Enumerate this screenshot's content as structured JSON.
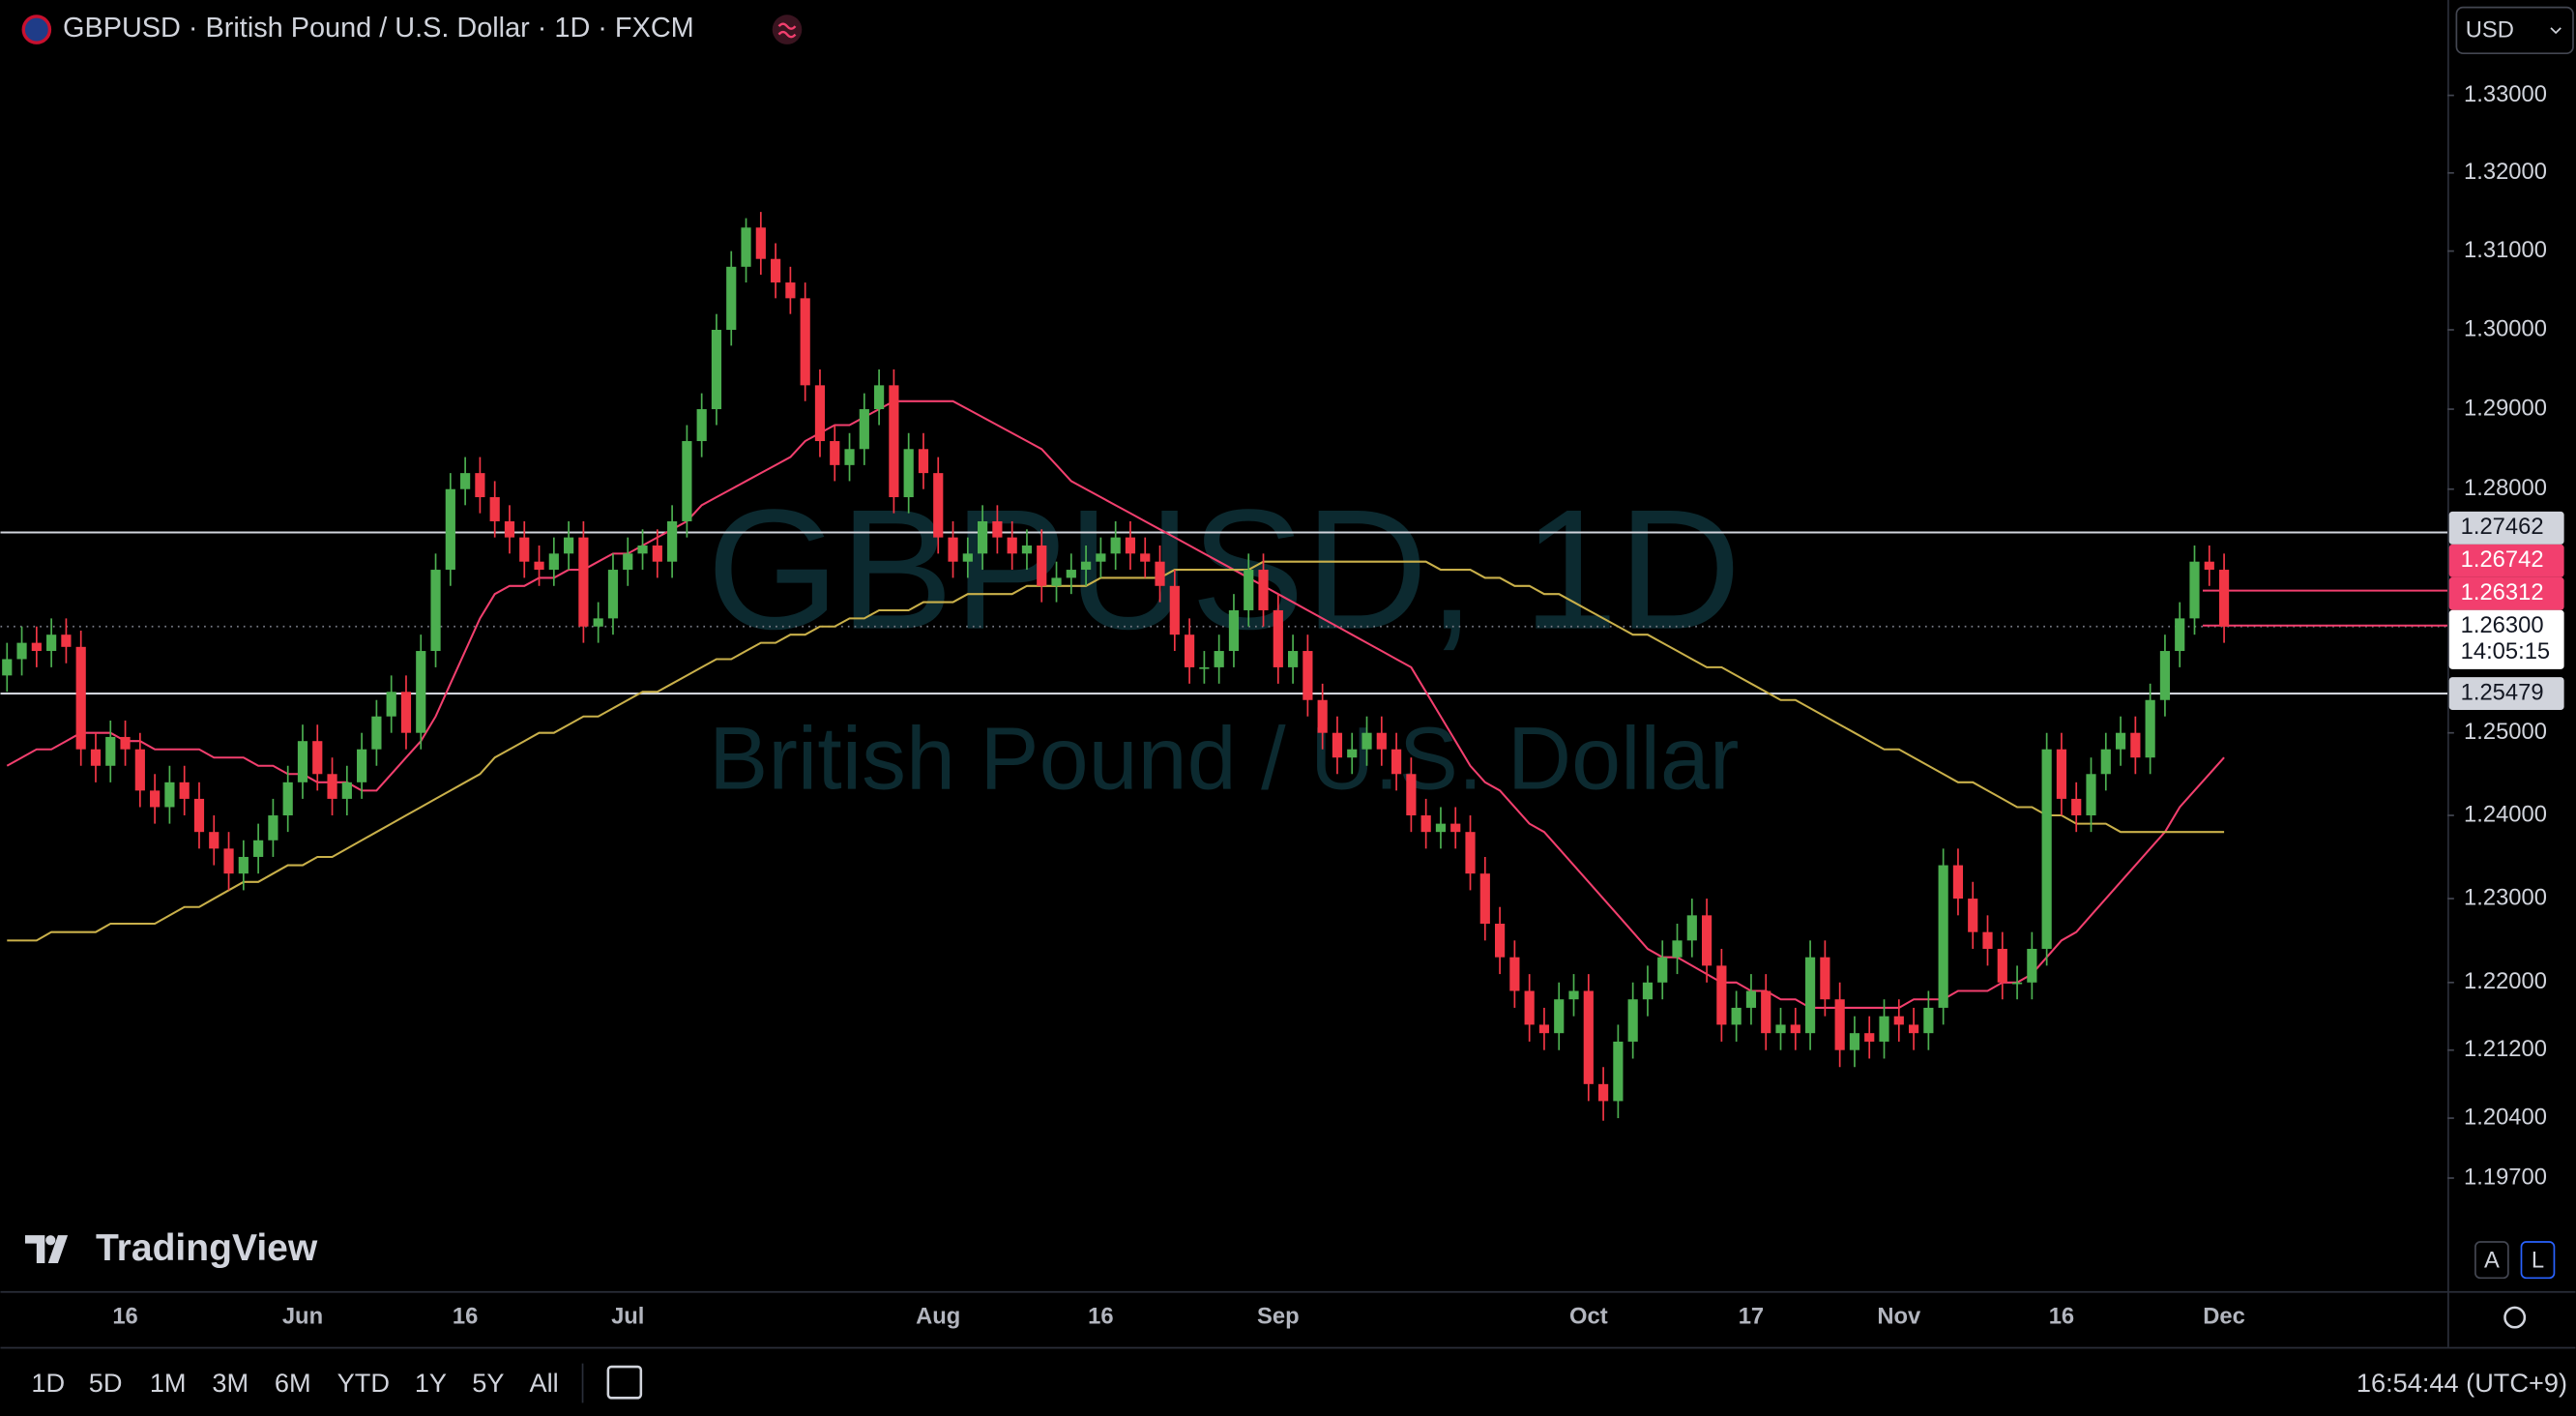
{
  "header": {
    "symbol_title": "GBPUSD · British Pound / U.S. Dollar · 1D · FXCM",
    "currency": "USD"
  },
  "chart_data": {
    "type": "candlestick",
    "watermark_title": "GBPUSD, 1D",
    "watermark_subtitle": "British Pound / U.S. Dollar",
    "log_scale": true,
    "up_color": "#4caf50",
    "down_color": "#f23645",
    "ylim": [
      1.1839,
      1.3424
    ],
    "yticks": [
      {
        "value": 1.33,
        "label": "1.33000"
      },
      {
        "value": 1.32,
        "label": "1.32000"
      },
      {
        "value": 1.31,
        "label": "1.31000"
      },
      {
        "value": 1.3,
        "label": "1.30000"
      },
      {
        "value": 1.29,
        "label": "1.29000"
      },
      {
        "value": 1.28,
        "label": "1.28000"
      },
      {
        "value": 1.25,
        "label": "1.25000"
      },
      {
        "value": 1.24,
        "label": "1.24000"
      },
      {
        "value": 1.23,
        "label": "1.23000"
      },
      {
        "value": 1.22,
        "label": "1.22000"
      },
      {
        "value": 1.212,
        "label": "1.21200"
      },
      {
        "value": 1.204,
        "label": "1.20400"
      },
      {
        "value": 1.197,
        "label": "1.19700"
      }
    ],
    "categories": [
      null,
      null,
      null,
      null,
      null,
      null,
      null,
      null,
      "16",
      null,
      null,
      null,
      null,
      null,
      null,
      null,
      null,
      null,
      null,
      null,
      "Jun",
      null,
      null,
      null,
      null,
      null,
      null,
      null,
      null,
      null,
      null,
      "16",
      null,
      null,
      null,
      null,
      null,
      null,
      null,
      null,
      null,
      null,
      "Jul",
      null,
      null,
      null,
      null,
      null,
      null,
      null,
      null,
      null,
      null,
      null,
      null,
      null,
      null,
      null,
      null,
      null,
      null,
      null,
      null,
      "Aug",
      null,
      null,
      null,
      null,
      null,
      null,
      null,
      null,
      null,
      null,
      "16",
      null,
      null,
      null,
      null,
      null,
      null,
      null,
      null,
      null,
      null,
      null,
      "Sep",
      null,
      null,
      null,
      null,
      null,
      null,
      null,
      null,
      null,
      null,
      null,
      null,
      null,
      null,
      null,
      null,
      null,
      null,
      null,
      null,
      "Oct",
      null,
      null,
      null,
      null,
      null,
      null,
      null,
      null,
      null,
      null,
      "17",
      null,
      null,
      null,
      null,
      null,
      null,
      null,
      null,
      null,
      "Nov",
      null,
      null,
      null,
      null,
      null,
      null,
      null,
      null,
      null,
      null,
      "16",
      null,
      null,
      null,
      null,
      null,
      null,
      null,
      null,
      null,
      null,
      "Dec"
    ],
    "open": [
      1.257,
      1.259,
      1.261,
      1.26,
      1.262,
      1.2605,
      1.248,
      1.246,
      1.2495,
      1.248,
      1.243,
      1.241,
      1.244,
      1.242,
      1.238,
      1.236,
      1.233,
      1.235,
      1.237,
      1.24,
      1.244,
      1.249,
      1.245,
      1.242,
      1.244,
      1.248,
      1.252,
      1.255,
      1.25,
      1.26,
      1.27,
      1.28,
      1.282,
      1.279,
      1.276,
      1.274,
      1.271,
      1.27,
      1.272,
      1.274,
      1.263,
      1.264,
      1.27,
      1.272,
      1.273,
      1.271,
      1.276,
      1.286,
      1.29,
      1.3,
      1.308,
      1.313,
      1.309,
      1.306,
      1.304,
      1.293,
      1.286,
      1.283,
      1.285,
      1.29,
      1.293,
      1.279,
      1.285,
      1.282,
      1.274,
      1.271,
      1.272,
      1.276,
      1.274,
      1.272,
      1.273,
      1.268,
      1.269,
      1.27,
      1.271,
      1.272,
      1.274,
      1.272,
      1.271,
      1.268,
      1.262,
      1.258,
      1.258,
      1.26,
      1.265,
      1.27,
      1.265,
      1.258,
      1.26,
      1.254,
      1.25,
      1.247,
      1.248,
      1.25,
      1.248,
      1.245,
      1.24,
      1.238,
      1.239,
      1.238,
      1.233,
      1.227,
      1.223,
      1.219,
      1.215,
      1.214,
      1.218,
      1.219,
      1.208,
      1.206,
      1.213,
      1.218,
      1.22,
      1.223,
      1.225,
      1.228,
      1.222,
      1.215,
      1.217,
      1.219,
      1.214,
      1.215,
      1.214,
      1.223,
      1.218,
      1.212,
      1.214,
      1.213,
      1.216,
      1.215,
      1.214,
      1.217,
      1.234,
      1.23,
      1.226,
      1.224,
      1.22,
      1.22,
      1.224,
      1.248,
      1.242,
      1.24,
      1.245,
      1.248,
      1.25,
      1.247,
      1.254,
      1.26,
      1.264,
      1.271,
      1.27
    ],
    "high": [
      1.261,
      1.263,
      1.263,
      1.264,
      1.264,
      1.2625,
      1.25,
      1.2515,
      1.2515,
      1.25,
      1.245,
      1.246,
      1.246,
      1.244,
      1.24,
      1.238,
      1.237,
      1.239,
      1.242,
      1.246,
      1.251,
      1.251,
      1.247,
      1.246,
      1.25,
      1.254,
      1.257,
      1.257,
      1.262,
      1.272,
      1.282,
      1.284,
      1.284,
      1.281,
      1.278,
      1.276,
      1.273,
      1.274,
      1.276,
      1.276,
      1.266,
      1.272,
      1.274,
      1.275,
      1.275,
      1.278,
      1.288,
      1.292,
      1.302,
      1.31,
      1.3142,
      1.315,
      1.311,
      1.308,
      1.306,
      1.295,
      1.288,
      1.287,
      1.292,
      1.295,
      1.295,
      1.287,
      1.287,
      1.284,
      1.276,
      1.274,
      1.278,
      1.278,
      1.276,
      1.275,
      1.275,
      1.271,
      1.272,
      1.273,
      1.274,
      1.276,
      1.276,
      1.274,
      1.273,
      1.27,
      1.264,
      1.26,
      1.262,
      1.267,
      1.272,
      1.272,
      1.267,
      1.262,
      1.262,
      1.256,
      1.252,
      1.25,
      1.252,
      1.252,
      1.25,
      1.247,
      1.242,
      1.241,
      1.241,
      1.24,
      1.235,
      1.229,
      1.225,
      1.221,
      1.217,
      1.22,
      1.221,
      1.221,
      1.21,
      1.215,
      1.22,
      1.222,
      1.225,
      1.227,
      1.23,
      1.23,
      1.224,
      1.219,
      1.221,
      1.221,
      1.217,
      1.217,
      1.225,
      1.225,
      1.22,
      1.216,
      1.216,
      1.218,
      1.218,
      1.217,
      1.219,
      1.236,
      1.236,
      1.232,
      1.228,
      1.226,
      1.222,
      1.226,
      1.25,
      1.25,
      1.244,
      1.247,
      1.25,
      1.252,
      1.252,
      1.256,
      1.262,
      1.266,
      1.273,
      1.273,
      1.272
    ],
    "low": [
      1.255,
      1.257,
      1.258,
      1.258,
      1.2585,
      1.246,
      1.244,
      1.244,
      1.246,
      1.241,
      1.239,
      1.239,
      1.24,
      1.236,
      1.234,
      1.231,
      1.231,
      1.233,
      1.235,
      1.238,
      1.242,
      1.243,
      1.24,
      1.24,
      1.242,
      1.246,
      1.25,
      1.248,
      1.248,
      1.258,
      1.268,
      1.278,
      1.277,
      1.274,
      1.272,
      1.269,
      1.268,
      1.268,
      1.27,
      1.261,
      1.261,
      1.262,
      1.268,
      1.27,
      1.269,
      1.269,
      1.274,
      1.284,
      1.288,
      1.298,
      1.306,
      1.307,
      1.304,
      1.302,
      1.291,
      1.284,
      1.281,
      1.281,
      1.283,
      1.288,
      1.277,
      1.277,
      1.28,
      1.272,
      1.269,
      1.269,
      1.27,
      1.272,
      1.27,
      1.27,
      1.266,
      1.266,
      1.267,
      1.268,
      1.269,
      1.27,
      1.27,
      1.269,
      1.266,
      1.26,
      1.256,
      1.256,
      1.256,
      1.258,
      1.263,
      1.263,
      1.256,
      1.256,
      1.252,
      1.248,
      1.245,
      1.245,
      1.246,
      1.246,
      1.243,
      1.238,
      1.236,
      1.236,
      1.236,
      1.231,
      1.225,
      1.221,
      1.217,
      1.213,
      1.212,
      1.212,
      1.216,
      1.206,
      1.2037,
      1.204,
      1.211,
      1.216,
      1.218,
      1.221,
      1.223,
      1.22,
      1.213,
      1.213,
      1.215,
      1.212,
      1.212,
      1.212,
      1.212,
      1.216,
      1.21,
      1.21,
      1.211,
      1.211,
      1.213,
      1.212,
      1.212,
      1.215,
      1.228,
      1.224,
      1.222,
      1.218,
      1.218,
      1.218,
      1.222,
      1.24,
      1.238,
      1.238,
      1.243,
      1.246,
      1.245,
      1.245,
      1.252,
      1.258,
      1.262,
      1.268,
      1.261
    ],
    "close": [
      1.259,
      1.261,
      1.26,
      1.262,
      1.2605,
      1.248,
      1.246,
      1.2495,
      1.248,
      1.243,
      1.241,
      1.244,
      1.242,
      1.238,
      1.236,
      1.233,
      1.235,
      1.237,
      1.24,
      1.244,
      1.249,
      1.245,
      1.242,
      1.244,
      1.248,
      1.252,
      1.255,
      1.25,
      1.26,
      1.27,
      1.28,
      1.282,
      1.279,
      1.276,
      1.274,
      1.271,
      1.27,
      1.272,
      1.274,
      1.263,
      1.264,
      1.27,
      1.272,
      1.273,
      1.271,
      1.276,
      1.286,
      1.29,
      1.3,
      1.308,
      1.313,
      1.309,
      1.306,
      1.304,
      1.293,
      1.286,
      1.283,
      1.285,
      1.29,
      1.293,
      1.279,
      1.285,
      1.282,
      1.274,
      1.271,
      1.272,
      1.276,
      1.274,
      1.272,
      1.273,
      1.268,
      1.269,
      1.27,
      1.271,
      1.272,
      1.274,
      1.272,
      1.271,
      1.268,
      1.262,
      1.258,
      1.258,
      1.26,
      1.265,
      1.27,
      1.265,
      1.258,
      1.26,
      1.254,
      1.25,
      1.247,
      1.248,
      1.25,
      1.248,
      1.245,
      1.24,
      1.238,
      1.239,
      1.238,
      1.233,
      1.227,
      1.223,
      1.219,
      1.215,
      1.214,
      1.218,
      1.219,
      1.208,
      1.206,
      1.213,
      1.218,
      1.22,
      1.223,
      1.225,
      1.228,
      1.222,
      1.215,
      1.217,
      1.219,
      1.214,
      1.215,
      1.214,
      1.223,
      1.218,
      1.212,
      1.214,
      1.213,
      1.216,
      1.215,
      1.214,
      1.217,
      1.234,
      1.23,
      1.226,
      1.224,
      1.22,
      1.22,
      1.224,
      1.248,
      1.242,
      1.24,
      1.245,
      1.248,
      1.25,
      1.247,
      1.254,
      1.26,
      1.264,
      1.271,
      1.27,
      1.263
    ],
    "moving_averages": [
      {
        "color": "#f23f6e",
        "values": [
          1.246,
          1.247,
          1.248,
          1.248,
          1.249,
          1.25,
          1.25,
          1.25,
          1.249,
          1.249,
          1.248,
          1.248,
          1.248,
          1.248,
          1.247,
          1.247,
          1.247,
          1.246,
          1.246,
          1.245,
          1.245,
          1.244,
          1.244,
          1.244,
          1.243,
          1.243,
          1.245,
          1.247,
          1.249,
          1.252,
          1.256,
          1.26,
          1.264,
          1.267,
          1.268,
          1.268,
          1.269,
          1.269,
          1.27,
          1.27,
          1.271,
          1.272,
          1.272,
          1.273,
          1.274,
          1.275,
          1.276,
          1.278,
          1.279,
          1.28,
          1.281,
          1.282,
          1.283,
          1.284,
          1.286,
          1.287,
          1.288,
          1.288,
          1.289,
          1.29,
          1.291,
          1.291,
          1.291,
          1.291,
          1.291,
          1.29,
          1.289,
          1.288,
          1.287,
          1.286,
          1.285,
          1.283,
          1.281,
          1.28,
          1.279,
          1.278,
          1.277,
          1.276,
          1.275,
          1.274,
          1.273,
          1.272,
          1.271,
          1.27,
          1.269,
          1.268,
          1.267,
          1.266,
          1.265,
          1.264,
          1.263,
          1.262,
          1.261,
          1.26,
          1.259,
          1.258,
          1.255,
          1.252,
          1.249,
          1.246,
          1.244,
          1.243,
          1.241,
          1.239,
          1.238,
          1.236,
          1.234,
          1.232,
          1.23,
          1.228,
          1.226,
          1.224,
          1.223,
          1.223,
          1.222,
          1.221,
          1.22,
          1.22,
          1.219,
          1.219,
          1.218,
          1.218,
          1.217,
          1.217,
          1.217,
          1.217,
          1.217,
          1.217,
          1.217,
          1.218,
          1.218,
          1.218,
          1.219,
          1.219,
          1.219,
          1.22,
          1.22,
          1.221,
          1.223,
          1.225,
          1.226,
          1.228,
          1.23,
          1.232,
          1.234,
          1.236,
          1.238,
          1.241,
          1.243,
          1.245,
          1.247
        ]
      },
      {
        "color": "#c9b04a",
        "values": [
          1.225,
          1.225,
          1.225,
          1.226,
          1.226,
          1.226,
          1.226,
          1.227,
          1.227,
          1.227,
          1.227,
          1.228,
          1.229,
          1.229,
          1.23,
          1.231,
          1.232,
          1.232,
          1.233,
          1.234,
          1.234,
          1.235,
          1.235,
          1.236,
          1.237,
          1.238,
          1.239,
          1.24,
          1.241,
          1.242,
          1.243,
          1.244,
          1.245,
          1.247,
          1.248,
          1.249,
          1.25,
          1.25,
          1.251,
          1.252,
          1.252,
          1.253,
          1.254,
          1.255,
          1.255,
          1.256,
          1.257,
          1.258,
          1.259,
          1.259,
          1.26,
          1.261,
          1.261,
          1.262,
          1.262,
          1.263,
          1.263,
          1.264,
          1.264,
          1.265,
          1.265,
          1.265,
          1.266,
          1.266,
          1.266,
          1.267,
          1.267,
          1.267,
          1.267,
          1.268,
          1.268,
          1.268,
          1.268,
          1.268,
          1.269,
          1.269,
          1.269,
          1.269,
          1.269,
          1.27,
          1.27,
          1.27,
          1.27,
          1.27,
          1.27,
          1.271,
          1.271,
          1.271,
          1.271,
          1.271,
          1.271,
          1.271,
          1.271,
          1.271,
          1.271,
          1.271,
          1.271,
          1.27,
          1.27,
          1.27,
          1.269,
          1.269,
          1.268,
          1.268,
          1.267,
          1.267,
          1.266,
          1.265,
          1.264,
          1.263,
          1.262,
          1.262,
          1.261,
          1.26,
          1.259,
          1.258,
          1.258,
          1.257,
          1.256,
          1.255,
          1.254,
          1.254,
          1.253,
          1.252,
          1.251,
          1.25,
          1.249,
          1.248,
          1.248,
          1.247,
          1.246,
          1.245,
          1.244,
          1.244,
          1.243,
          1.242,
          1.241,
          1.241,
          1.24,
          1.24,
          1.239,
          1.239,
          1.239,
          1.238,
          1.238,
          1.238,
          1.238,
          1.238,
          1.238,
          1.238,
          1.238
        ]
      }
    ],
    "level_lines": [
      1.27462,
      1.25479
    ],
    "reference_prices": [
      1.26742,
      1.26312
    ],
    "reference_color": "#f23f6e",
    "last_price": {
      "value": 1.263,
      "label": "1.26300"
    },
    "countdown": "14:05:15"
  },
  "logo": "TradingView",
  "scale_buttons": [
    "A",
    "L"
  ],
  "toolbar": {
    "ranges": [
      "1D",
      "5D",
      "1M",
      "3M",
      "6M",
      "YTD",
      "1Y",
      "5Y",
      "All"
    ],
    "time": "16:54:44 (UTC+9)"
  }
}
